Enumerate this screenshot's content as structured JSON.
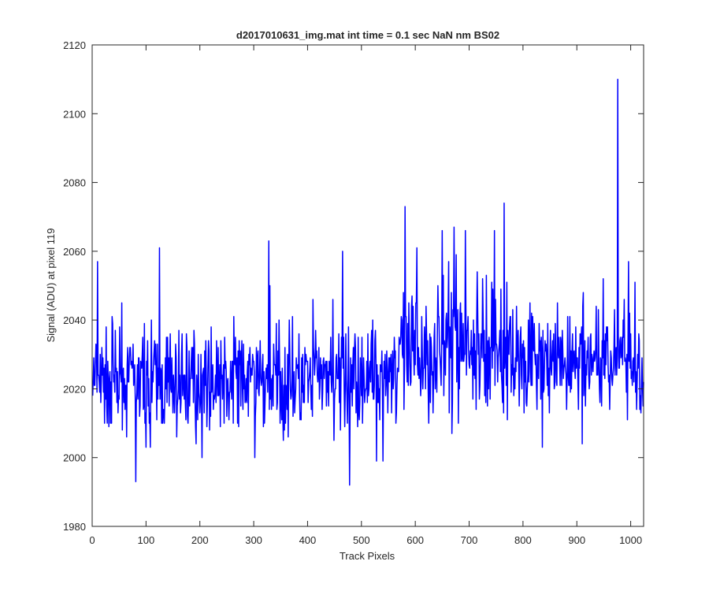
{
  "chart_data": {
    "type": "line",
    "title": "d2017010631_img.mat int time = 0.1 sec  NaN nm BS02",
    "xlabel": "Track Pixels",
    "ylabel": "Signal (ADU) at pixel 119",
    "xlim": [
      0,
      1024
    ],
    "ylim": [
      1980,
      2120
    ],
    "xticks": [
      0,
      100,
      200,
      300,
      400,
      500,
      600,
      700,
      800,
      900,
      1000
    ],
    "yticks": [
      1980,
      2000,
      2020,
      2040,
      2060,
      2080,
      2100,
      2120
    ],
    "grid": false,
    "box": true,
    "series": [
      {
        "color": "#0000ff",
        "x_start": 1,
        "x_step": 1,
        "count": 1024,
        "baseline": [
          [
            0,
            2022
          ],
          [
            100,
            2021
          ],
          [
            200,
            2022
          ],
          [
            300,
            2023
          ],
          [
            400,
            2022
          ],
          [
            500,
            2023
          ],
          [
            550,
            2026
          ],
          [
            600,
            2030
          ],
          [
            650,
            2031
          ],
          [
            700,
            2032
          ],
          [
            750,
            2031
          ],
          [
            800,
            2029
          ],
          [
            850,
            2027
          ],
          [
            900,
            2028
          ],
          [
            950,
            2029
          ],
          [
            1024,
            2028
          ]
        ],
        "noise_amplitude": 7,
        "peaks": [
          [
            10,
            2057
          ],
          [
            55,
            2045
          ],
          [
            81,
            1993
          ],
          [
            125,
            2061
          ],
          [
            328,
            2063
          ],
          [
            302,
            2000
          ],
          [
            410,
            2046
          ],
          [
            465,
            2060
          ],
          [
            478,
            1992
          ],
          [
            528,
            1999
          ],
          [
            581,
            2073
          ],
          [
            650,
            2066
          ],
          [
            672,
            2067
          ],
          [
            693,
            2066
          ],
          [
            765,
            2074
          ],
          [
            747,
            2066
          ],
          [
            836,
            2003
          ],
          [
            910,
            2004
          ],
          [
            976,
            2110
          ],
          [
            996,
            2057
          ],
          [
            1019,
            2013
          ]
        ]
      }
    ]
  }
}
